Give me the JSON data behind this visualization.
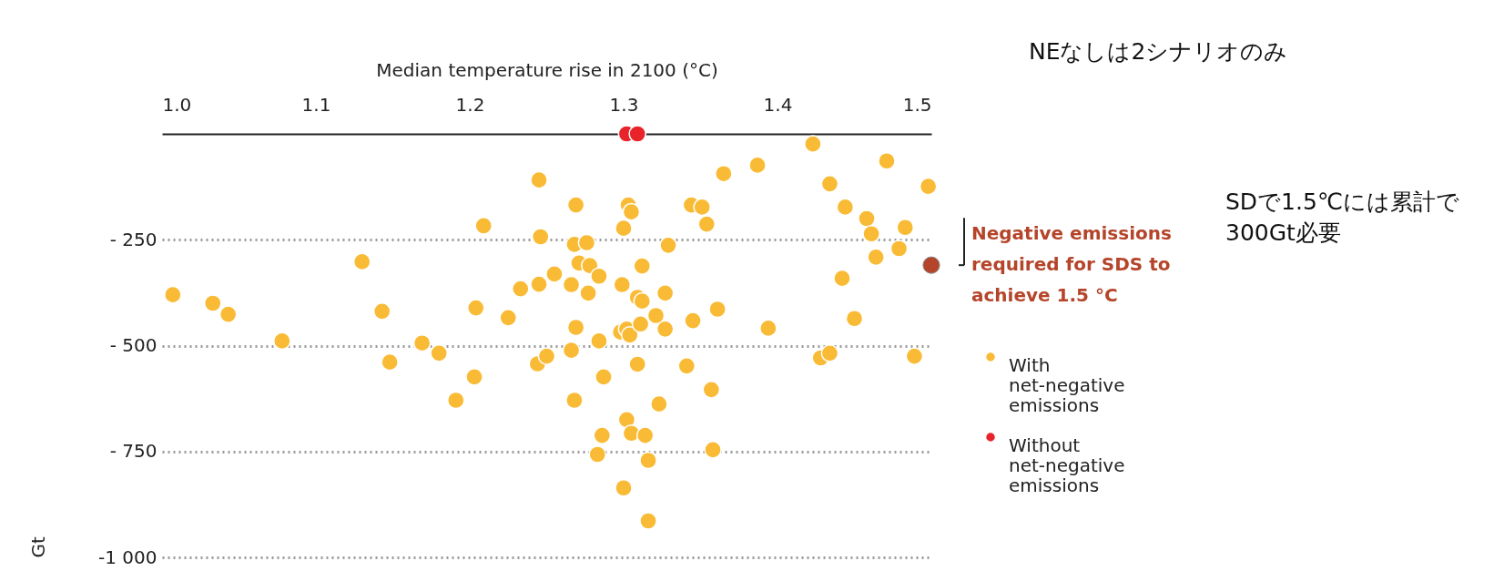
{
  "chart_data": {
    "type": "scatter",
    "xlabel": "Median temperature rise in 2100 (°C)",
    "ylabel": "Gt",
    "xlim": [
      1.0,
      1.5
    ],
    "xticks": [
      {
        "value": 1.0,
        "label": "1.0"
      },
      1.1,
      1.2,
      1.3,
      1.4,
      1.5
    ],
    "ylim": [
      -1000,
      0
    ],
    "yticks": [
      {
        "value": -250,
        "label": "- 250"
      },
      {
        "value": -500,
        "label": "- 500"
      },
      {
        "value": -750,
        "label": "- 750"
      },
      {
        "value": -1000,
        "label": "-1 000"
      }
    ],
    "grid": "y",
    "legend": "right",
    "marker": "circle",
    "series": [
      {
        "name": "With net-negative emissions",
        "color": "#f9bb35",
        "x": [
          1.007,
          1.033,
          1.043,
          1.078,
          1.13,
          1.143,
          1.148,
          1.169,
          1.18,
          1.191,
          1.203,
          1.204,
          1.209,
          1.225,
          1.233,
          1.245,
          1.246,
          1.245,
          1.244,
          1.25,
          1.255,
          1.266,
          1.269,
          1.268,
          1.276,
          1.271,
          1.278,
          1.284,
          1.277,
          1.269,
          1.266,
          1.284,
          1.268,
          1.287,
          1.286,
          1.283,
          1.3,
          1.302,
          1.305,
          1.314,
          1.316,
          1.316,
          1.303,
          1.305,
          1.3,
          1.312,
          1.299,
          1.309,
          1.312,
          1.298,
          1.302,
          1.304,
          1.311,
          1.321,
          1.327,
          1.327,
          1.329,
          1.309,
          1.323,
          1.341,
          1.345,
          1.344,
          1.351,
          1.354,
          1.361,
          1.357,
          1.358,
          1.365,
          1.387,
          1.394,
          1.423,
          1.434,
          1.444,
          1.442,
          1.45,
          1.428,
          1.434,
          1.458,
          1.461,
          1.464,
          1.471,
          1.483,
          1.479,
          1.489,
          1.498
        ],
        "values": [
          -380,
          -400,
          -426,
          -489,
          -302,
          -419,
          -539,
          -494,
          -518,
          -629,
          -574,
          -411,
          -217,
          -434,
          -366,
          -109,
          -243,
          -355,
          -543,
          -525,
          -331,
          -356,
          -168,
          -261,
          -257,
          -305,
          -311,
          -336,
          -376,
          -457,
          -511,
          -489,
          -629,
          -574,
          -712,
          -757,
          -836,
          -675,
          -707,
          -712,
          -771,
          -914,
          -168,
          -184,
          -223,
          -312,
          -356,
          -386,
          -395,
          -468,
          -461,
          -475,
          -449,
          -429,
          -376,
          -461,
          -263,
          -544,
          -638,
          -548,
          -441,
          -168,
          -173,
          -213,
          -414,
          -604,
          -746,
          -94,
          -74,
          -459,
          -24,
          -118,
          -173,
          -341,
          -436,
          -529,
          -518,
          -200,
          -236,
          -291,
          -64,
          -221,
          -271,
          -525,
          -124
        ]
      },
      {
        "name": "Without net-negative emissions",
        "color": "#e8242a",
        "x": [
          1.302,
          1.309
        ],
        "values": [
          0,
          0
        ]
      },
      {
        "name": "Negative emissions required for SDS to achieve 1.5 °C",
        "color": "#b5452a",
        "x": [
          1.5
        ],
        "values": [
          -310
        ]
      }
    ],
    "annotations": [
      "NEなしは2シナリオのみ",
      "SDで1.5℃には累計で300Gt必要"
    ]
  }
}
